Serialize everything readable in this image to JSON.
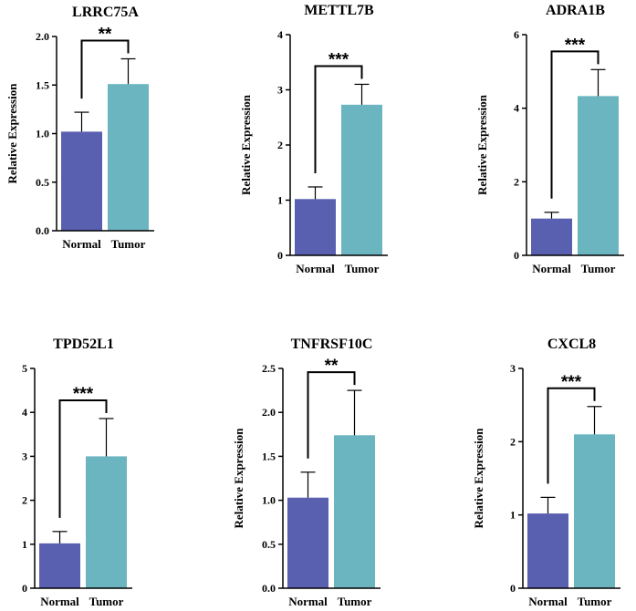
{
  "colors": {
    "normal": "#5a60b0",
    "tumor": "#6bb5c1",
    "axis": "#000000"
  },
  "chart_data": [
    {
      "type": "bar",
      "title": "LRRC75A",
      "ylabel": "Relative Expression",
      "categories": [
        "Normal",
        "Tumor"
      ],
      "values": [
        1.02,
        1.51
      ],
      "errors": [
        0.2,
        0.26
      ],
      "ylim": [
        0,
        2.0
      ],
      "yticks": [
        0,
        0.5,
        1.0,
        1.5,
        2.0
      ],
      "ytick_labels": [
        "0.0",
        "0.5",
        "1.0",
        "1.5",
        "2.0"
      ],
      "significance": "**"
    },
    {
      "type": "bar",
      "title": "METTL7B",
      "ylabel": "Relative Expression",
      "categories": [
        "Normal",
        "Tumor"
      ],
      "values": [
        1.02,
        2.73
      ],
      "errors": [
        0.22,
        0.37
      ],
      "ylim": [
        0,
        4
      ],
      "yticks": [
        0,
        1,
        2,
        3,
        4
      ],
      "ytick_labels": [
        "0",
        "1",
        "2",
        "3",
        "4"
      ],
      "significance": "***"
    },
    {
      "type": "bar",
      "title": "ADRA1B",
      "ylabel": "Relative Expression",
      "categories": [
        "Normal",
        "Tumor"
      ],
      "values": [
        1.0,
        4.33
      ],
      "errors": [
        0.17,
        0.72
      ],
      "ylim": [
        0,
        6
      ],
      "yticks": [
        0,
        2,
        4,
        6
      ],
      "ytick_labels": [
        "0",
        "2",
        "4",
        "6"
      ],
      "significance": "***"
    },
    {
      "type": "bar",
      "title": "TPD52L1",
      "ylabel": "Relative Expression",
      "categories": [
        "Normal",
        "Tumor"
      ],
      "values": [
        1.02,
        3.0
      ],
      "errors": [
        0.27,
        0.86
      ],
      "ylim": [
        0,
        5
      ],
      "yticks": [
        0,
        1,
        2,
        3,
        4,
        5
      ],
      "ytick_labels": [
        "0",
        "1",
        "2",
        "3",
        "4",
        "5"
      ],
      "significance": "***"
    },
    {
      "type": "bar",
      "title": "TNFRSF10C",
      "ylabel": "Relative Expression",
      "categories": [
        "Normal",
        "Tumor"
      ],
      "values": [
        1.03,
        1.74
      ],
      "errors": [
        0.29,
        0.51
      ],
      "ylim": [
        0,
        2.5
      ],
      "yticks": [
        0,
        0.5,
        1.0,
        1.5,
        2.0,
        2.5
      ],
      "ytick_labels": [
        "0.0",
        "0.5",
        "1.0",
        "1.5",
        "2.0",
        "2.5"
      ],
      "significance": "**"
    },
    {
      "type": "bar",
      "title": "CXCL8",
      "ylabel": "Relative Expression",
      "categories": [
        "Normal",
        "Tumor"
      ],
      "values": [
        1.02,
        2.1
      ],
      "errors": [
        0.22,
        0.38
      ],
      "ylim": [
        0,
        3
      ],
      "yticks": [
        0,
        1,
        2,
        3
      ],
      "ytick_labels": [
        "0",
        "1",
        "2",
        "3"
      ],
      "significance": "***"
    }
  ]
}
